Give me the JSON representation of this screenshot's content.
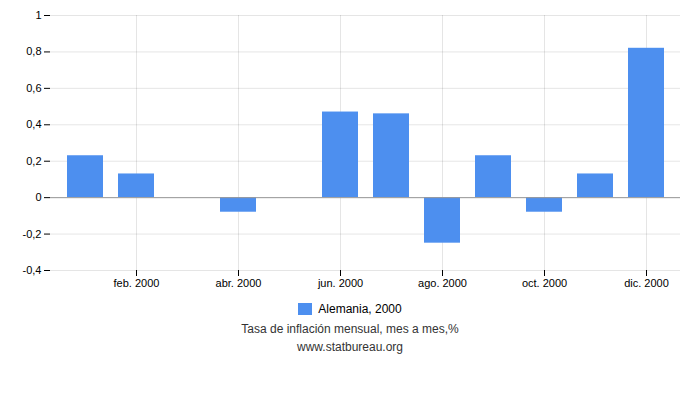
{
  "chart_data": {
    "type": "bar",
    "categories": [
      null,
      "feb. 2000",
      null,
      "abr. 2000",
      null,
      "jun. 2000",
      null,
      "ago. 2000",
      null,
      "oct. 2000",
      null,
      "dic. 2000"
    ],
    "series": [
      {
        "name": "Alemania, 2000",
        "color": "#4d8fef",
        "values": [
          0.23,
          0.13,
          0.0,
          -0.08,
          0.0,
          0.47,
          0.46,
          -0.25,
          0.23,
          -0.08,
          0.13,
          0.82
        ]
      }
    ],
    "ylim": [
      -0.4,
      1.0
    ],
    "yticks": [
      {
        "value": -0.4,
        "label": "-0,4"
      },
      {
        "value": -0.2,
        "label": "-0,2"
      },
      0,
      {
        "value": 0.2,
        "label": "0,2"
      },
      {
        "value": 0.4,
        "label": "0,4"
      },
      {
        "value": 0.6,
        "label": "0,6"
      },
      {
        "value": 0.8,
        "label": "0,8"
      },
      1
    ],
    "grid": true,
    "legend": "bottom",
    "annotations": [
      "Tasa de inflación mensual, mes a mes,%",
      "www.statbureau.org"
    ]
  }
}
